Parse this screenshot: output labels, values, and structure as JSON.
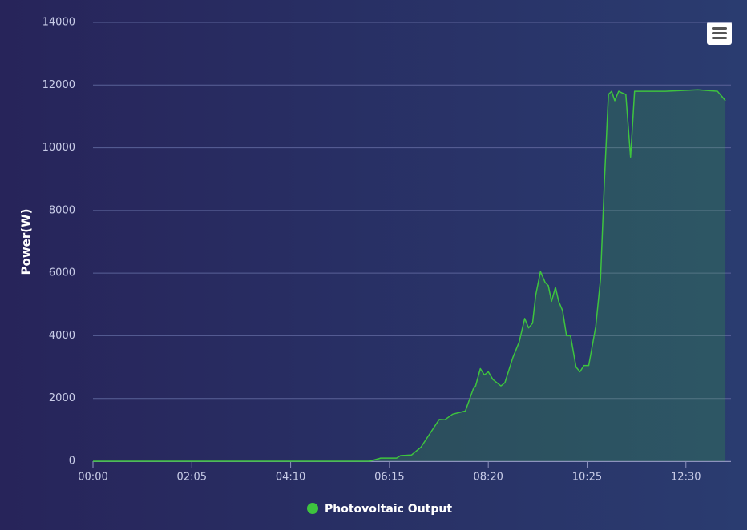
{
  "chart_data": {
    "type": "area",
    "y_axis_title": "Power(W)",
    "x": [
      "00:00",
      "05:50",
      "06:04",
      "06:24",
      "06:29",
      "06:43",
      "06:55",
      "07:18",
      "07:25",
      "07:35",
      "07:51",
      "08:01",
      "08:04",
      "08:10",
      "08:15",
      "08:20",
      "08:26",
      "08:36",
      "08:41",
      "08:51",
      "08:59",
      "09:06",
      "09:11",
      "09:16",
      "09:20",
      "09:26",
      "09:32",
      "09:36",
      "09:40",
      "09:45",
      "09:49",
      "09:54",
      "09:59",
      "10:04",
      "10:11",
      "10:16",
      "10:21",
      "10:27",
      "10:31",
      "10:36",
      "10:42",
      "10:47",
      "10:52",
      "10:56",
      "11:00",
      "11:05",
      "11:09",
      "11:14",
      "11:20",
      "11:25",
      "12:04",
      "12:45",
      "13:10",
      "13:20"
    ],
    "series": [
      {
        "name": "Photovoltaic Output",
        "color": "#3ec43e",
        "values": [
          0,
          0,
          100,
          100,
          180,
          200,
          450,
          1330,
          1320,
          1500,
          1600,
          2300,
          2400,
          2950,
          2750,
          2850,
          2600,
          2400,
          2500,
          3300,
          3800,
          4550,
          4250,
          4400,
          5300,
          6050,
          5700,
          5600,
          5100,
          5550,
          5100,
          4800,
          4000,
          4000,
          3000,
          2850,
          3050,
          3050,
          3600,
          4300,
          5800,
          9000,
          11700,
          11800,
          11500,
          11800,
          11750,
          11700,
          9700,
          11800,
          11800,
          11850,
          11800,
          11500
        ]
      }
    ],
    "xlim": [
      "00:00",
      "13:27"
    ],
    "xticks": [
      "00:00",
      "02:05",
      "04:10",
      "06:15",
      "08:20",
      "10:25",
      "12:30"
    ],
    "ylim": [
      0,
      14000
    ],
    "yticks": [
      0,
      2000,
      4000,
      6000,
      8000,
      10000,
      12000,
      14000
    ],
    "grid": true,
    "legend": "bottom"
  }
}
